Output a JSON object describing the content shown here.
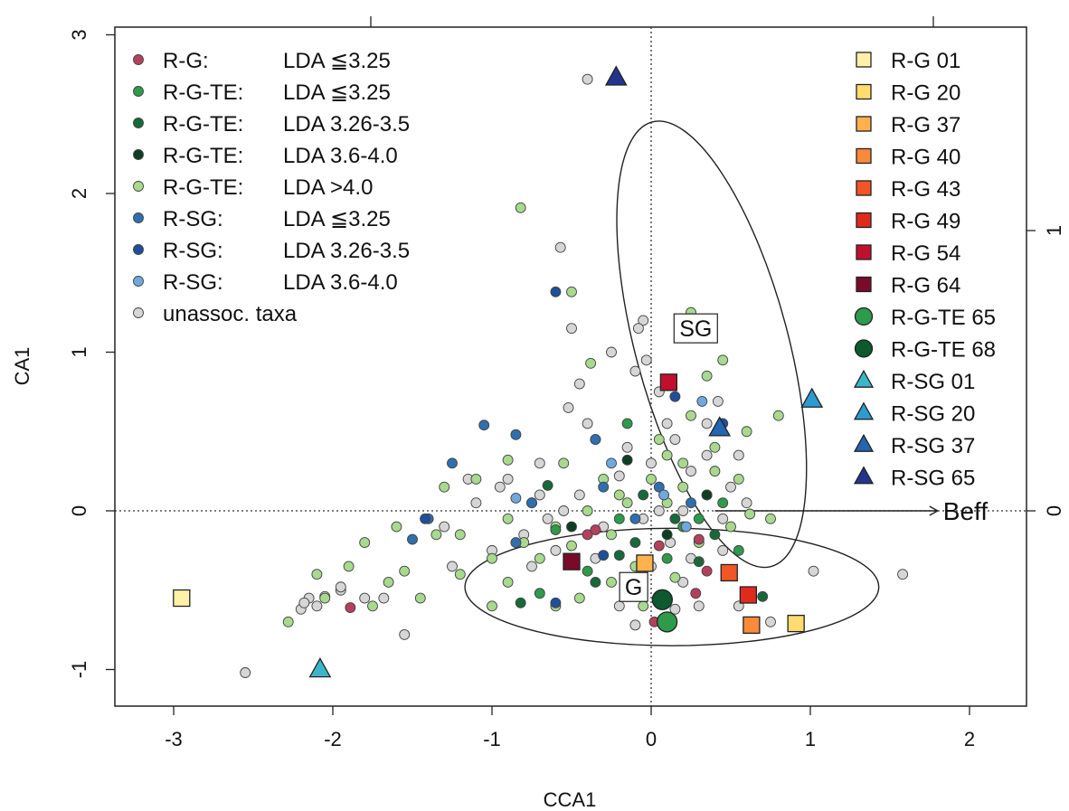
{
  "chart_data": {
    "type": "scatter",
    "title": "",
    "xlabel": "CCA1",
    "ylabel": "CA1",
    "xlim": [
      -3.4,
      2.35
    ],
    "ylim": [
      -1.25,
      3.05
    ],
    "x_ticks": [
      "-3",
      "-2",
      "-1",
      "0",
      "1",
      "2"
    ],
    "y_ticks": [
      "-1",
      "0",
      "1",
      "2",
      "3"
    ],
    "right_axis_ticks": [
      "0",
      "1"
    ],
    "grid": false,
    "reference_lines": "dotted lines at x = 0 and y = 0",
    "legend_left_position": "top-left",
    "legend_right_position": "top-right",
    "legend_left": [
      {
        "group": "R-G:",
        "lda": "LDA ≦3.25",
        "color": "#B5405E",
        "key": "rg_le325"
      },
      {
        "group": "R-G-TE:",
        "lda": "LDA ≦3.25",
        "color": "#2E9A4C",
        "key": "rgte_le325"
      },
      {
        "group": "R-G-TE:",
        "lda": "LDA 3.26-3.5",
        "color": "#17693A",
        "key": "rgte_326"
      },
      {
        "group": "R-G-TE:",
        "lda": "LDA 3.6-4.0",
        "color": "#0E3D24",
        "key": "rgte_36"
      },
      {
        "group": "R-G-TE:",
        "lda": "LDA >4.0",
        "color": "#A8D98E",
        "key": "rgte_gt4"
      },
      {
        "group": "R-SG:",
        "lda": "LDA ≦3.25",
        "color": "#2F6FAE",
        "key": "rsg_le325"
      },
      {
        "group": "R-SG:",
        "lda": "LDA 3.26-3.5",
        "color": "#1F4E9A",
        "key": "rsg_326"
      },
      {
        "group": "R-SG:",
        "lda": "LDA 3.6-4.0",
        "color": "#6FA8DC",
        "key": "rsg_36"
      },
      {
        "group": "unassoc. taxa",
        "lda": "",
        "color": "#D6D6D6",
        "key": "unassoc"
      }
    ],
    "legend_right": [
      {
        "label": "R-G 01",
        "shape": "square",
        "color": "#FFF2A8"
      },
      {
        "label": "R-G 20",
        "shape": "square",
        "color": "#FFDC6E"
      },
      {
        "label": "R-G 37",
        "shape": "square",
        "color": "#FDB24E"
      },
      {
        "label": "R-G 40",
        "shape": "square",
        "color": "#F98A3A"
      },
      {
        "label": "R-G 43",
        "shape": "square",
        "color": "#F25526"
      },
      {
        "label": "R-G 49",
        "shape": "square",
        "color": "#E02A1E"
      },
      {
        "label": "R-G 54",
        "shape": "square",
        "color": "#C0102E"
      },
      {
        "label": "R-G 64",
        "shape": "square",
        "color": "#7A0A2A"
      },
      {
        "label": "R-G-TE 65",
        "shape": "circle",
        "color": "#2E9A4C"
      },
      {
        "label": "R-G-TE 68",
        "shape": "circle",
        "color": "#0E5A2E"
      },
      {
        "label": "R-SG 01",
        "shape": "triangle",
        "color": "#3DB5C8"
      },
      {
        "label": "R-SG 20",
        "shape": "triangle",
        "color": "#2C9BD0"
      },
      {
        "label": "R-SG 37",
        "shape": "triangle",
        "color": "#2466B0"
      },
      {
        "label": "R-SG 65",
        "shape": "triangle",
        "color": "#23348F"
      }
    ],
    "group_labels": [
      {
        "text": "SG",
        "x": 0.28,
        "y": 1.15
      },
      {
        "text": "G",
        "x": -0.11,
        "y": -0.48
      }
    ],
    "ellipses": [
      {
        "name": "SG",
        "cx": 0.38,
        "cy": 1.05,
        "rx": 0.48,
        "ry": 1.45,
        "angle": 15
      },
      {
        "name": "G",
        "cx": 0.13,
        "cy": -0.48,
        "rx": 1.3,
        "ry": 0.37,
        "angle": 0
      }
    ],
    "arrow": {
      "label": "Beff",
      "x0": 0.4,
      "y0": 0,
      "x1": 1.8,
      "y1": 0
    },
    "samples": [
      {
        "label": "R-G 01",
        "shape": "square",
        "color": "#FFF2A8",
        "x": -2.95,
        "y": -0.55
      },
      {
        "label": "R-G 20",
        "shape": "square",
        "color": "#FFDC6E",
        "x": 0.91,
        "y": -0.71
      },
      {
        "label": "R-G 37",
        "shape": "square",
        "color": "#FDB24E",
        "x": -0.04,
        "y": -0.33
      },
      {
        "label": "R-G 40",
        "shape": "square",
        "color": "#F98A3A",
        "x": 0.63,
        "y": -0.72
      },
      {
        "label": "R-G 43",
        "shape": "square",
        "color": "#F25526",
        "x": 0.49,
        "y": -0.39
      },
      {
        "label": "R-G 49",
        "shape": "square",
        "color": "#E02A1E",
        "x": 0.61,
        "y": -0.53
      },
      {
        "label": "R-G 54",
        "shape": "square",
        "color": "#C0102E",
        "x": 0.11,
        "y": 0.81
      },
      {
        "label": "R-G 64",
        "shape": "square",
        "color": "#7A0A2A",
        "x": -0.5,
        "y": -0.32
      },
      {
        "label": "R-G-TE 65",
        "shape": "circle",
        "color": "#2E9A4C",
        "x": 0.1,
        "y": -0.7
      },
      {
        "label": "R-G-TE 68",
        "shape": "circle",
        "color": "#0E5A2E",
        "x": 0.07,
        "y": -0.56
      },
      {
        "label": "R-SG 01",
        "shape": "triangle",
        "color": "#3DB5C8",
        "x": -2.08,
        "y": -1.0
      },
      {
        "label": "R-SG 20",
        "shape": "triangle",
        "color": "#2C9BD0",
        "x": 1.01,
        "y": 0.7
      },
      {
        "label": "R-SG 37",
        "shape": "triangle",
        "color": "#2466B0",
        "x": 0.43,
        "y": 0.52
      },
      {
        "label": "R-SG 65",
        "shape": "triangle",
        "color": "#23348F",
        "x": -0.22,
        "y": 2.73
      }
    ],
    "series": [
      {
        "key": "rg_le325",
        "points": [
          [
            -1.89,
            -0.61
          ],
          [
            -0.4,
            -0.15
          ],
          [
            0.05,
            -0.22
          ],
          [
            -0.35,
            -0.12
          ],
          [
            0.28,
            -0.52
          ],
          [
            0.3,
            -0.18
          ],
          [
            0.02,
            -0.7
          ],
          [
            0.35,
            -0.38
          ]
        ]
      },
      {
        "key": "rgte_le325",
        "points": [
          [
            -0.7,
            -0.52
          ],
          [
            -0.2,
            -0.05
          ],
          [
            0.1,
            -0.3
          ],
          [
            -0.15,
            0.55
          ],
          [
            0.3,
            -0.05
          ],
          [
            -0.4,
            -0.38
          ],
          [
            0.45,
            0.05
          ],
          [
            0.2,
            -0.1
          ],
          [
            -0.6,
            -0.12
          ],
          [
            0.55,
            -0.25
          ]
        ]
      },
      {
        "key": "rgte_326",
        "points": [
          [
            -0.65,
            0.16
          ],
          [
            -0.35,
            -0.45
          ],
          [
            -0.1,
            -0.2
          ],
          [
            0.15,
            -0.05
          ],
          [
            -0.82,
            -0.58
          ],
          [
            0.3,
            -0.32
          ],
          [
            0.7,
            -0.54
          ],
          [
            -0.05,
            0.1
          ],
          [
            0.4,
            -0.15
          ],
          [
            -0.2,
            -0.28
          ]
        ]
      },
      {
        "key": "rgte_36",
        "points": [
          [
            -0.5,
            -0.1
          ],
          [
            -0.15,
            0.32
          ],
          [
            0.1,
            -0.15
          ],
          [
            0.35,
            0.1
          ]
        ]
      },
      {
        "key": "rgte_gt4",
        "points": [
          [
            -0.82,
            1.91
          ],
          [
            -0.5,
            1.38
          ],
          [
            -0.38,
            0.93
          ],
          [
            -0.9,
            0.32
          ],
          [
            -1.1,
            0.2
          ],
          [
            -1.3,
            0.15
          ],
          [
            -1.6,
            -0.1
          ],
          [
            -1.8,
            -0.2
          ],
          [
            -2.05,
            -0.55
          ],
          [
            -2.28,
            -0.7
          ],
          [
            -1.45,
            -0.55
          ],
          [
            -1.65,
            -0.45
          ],
          [
            -1.2,
            -0.4
          ],
          [
            -1.0,
            -0.3
          ],
          [
            -0.8,
            -0.2
          ],
          [
            -0.6,
            -0.1
          ],
          [
            -0.4,
            0.0
          ],
          [
            -0.2,
            0.1
          ],
          [
            0.0,
            0.2
          ],
          [
            0.2,
            0.3
          ],
          [
            0.4,
            0.4
          ],
          [
            0.6,
            0.5
          ],
          [
            0.8,
            0.6
          ],
          [
            0.25,
            1.25
          ],
          [
            0.35,
            0.85
          ],
          [
            0.45,
            0.95
          ],
          [
            0.62,
            -0.02
          ],
          [
            -0.25,
            -0.45
          ],
          [
            -0.05,
            -0.6
          ],
          [
            0.15,
            -0.42
          ],
          [
            -0.7,
            -0.3
          ],
          [
            -0.9,
            -0.45
          ],
          [
            -1.35,
            -0.15
          ],
          [
            -0.55,
            0.3
          ],
          [
            -0.3,
            0.2
          ],
          [
            0.05,
            0.45
          ],
          [
            0.25,
            0.6
          ],
          [
            -0.1,
            -0.35
          ],
          [
            0.5,
            -0.1
          ],
          [
            -0.45,
            -0.55
          ],
          [
            -1.55,
            -0.38
          ],
          [
            -1.75,
            -0.6
          ],
          [
            -1.9,
            -0.35
          ],
          [
            -2.1,
            -0.4
          ],
          [
            -1.0,
            -0.6
          ],
          [
            -0.6,
            -0.6
          ],
          [
            0.2,
            0.15
          ],
          [
            0.4,
            0.25
          ],
          [
            -0.15,
            0.05
          ],
          [
            0.1,
            0.35
          ],
          [
            -0.35,
            0.45
          ],
          [
            -1.2,
            -0.15
          ],
          [
            -0.9,
            -0.05
          ],
          [
            -0.75,
            0.05
          ],
          [
            0.3,
            -0.2
          ],
          [
            0.1,
            0.05
          ],
          [
            -0.25,
            -0.15
          ],
          [
            -0.5,
            -0.22
          ],
          [
            0.55,
            0.2
          ],
          [
            0.75,
            -0.05
          ]
        ]
      },
      {
        "key": "rsg_le325",
        "points": [
          [
            -1.25,
            0.3
          ],
          [
            -0.85,
            0.48
          ],
          [
            -1.05,
            0.54
          ],
          [
            -0.35,
            0.45
          ],
          [
            -0.85,
            -0.2
          ],
          [
            -1.5,
            -0.18
          ],
          [
            -0.75,
            0.05
          ],
          [
            0.05,
            0.15
          ],
          [
            0.25,
            0.05
          ],
          [
            -0.1,
            -0.05
          ],
          [
            -1.4,
            -0.05
          ],
          [
            -0.3,
            0.15
          ]
        ]
      },
      {
        "key": "rsg_326",
        "points": [
          [
            -0.6,
            1.38
          ],
          [
            -0.6,
            -0.58
          ],
          [
            0.15,
            0.72
          ],
          [
            -0.3,
            -0.28
          ],
          [
            -1.42,
            -0.05
          ],
          [
            0.45,
            0.55
          ]
        ]
      },
      {
        "key": "rsg_36",
        "points": [
          [
            0.32,
            0.69
          ],
          [
            -0.85,
            0.08
          ],
          [
            0.08,
            0.1
          ],
          [
            0.22,
            -0.1
          ],
          [
            -0.25,
            0.3
          ]
        ]
      },
      {
        "key": "unassoc",
        "points": [
          [
            -0.4,
            2.72
          ],
          [
            -0.57,
            1.66
          ],
          [
            -0.5,
            1.15
          ],
          [
            -0.45,
            0.8
          ],
          [
            -0.52,
            0.65
          ],
          [
            -0.05,
            1.2
          ],
          [
            -0.08,
            1.15
          ],
          [
            -0.25,
            1.0
          ],
          [
            -0.03,
            0.95
          ],
          [
            -0.1,
            0.88
          ],
          [
            -2.55,
            -1.02
          ],
          [
            -2.2,
            -0.62
          ],
          [
            -2.15,
            -0.55
          ],
          [
            -2.05,
            -0.54
          ],
          [
            -2.18,
            -0.58
          ],
          [
            -2.1,
            -0.6
          ],
          [
            -1.95,
            -0.5
          ],
          [
            -1.8,
            -0.55
          ],
          [
            -1.68,
            -0.55
          ],
          [
            -1.55,
            -0.78
          ],
          [
            -1.95,
            -0.48
          ],
          [
            -1.15,
            0.2
          ],
          [
            -0.95,
            0.15
          ],
          [
            -0.7,
            0.1
          ],
          [
            -1.3,
            -0.1
          ],
          [
            1.58,
            -0.4
          ],
          [
            1.02,
            -0.38
          ],
          [
            0.75,
            -0.7
          ],
          [
            0.55,
            0.35
          ],
          [
            0.42,
            0.69
          ],
          [
            -0.1,
            -0.72
          ],
          [
            0.05,
            0.0
          ],
          [
            0.12,
            -0.2
          ],
          [
            0.25,
            0.25
          ],
          [
            0.35,
            0.1
          ],
          [
            0.45,
            -0.05
          ],
          [
            0.15,
            0.45
          ],
          [
            -0.2,
            0.22
          ],
          [
            -0.45,
            0.1
          ],
          [
            -0.65,
            -0.05
          ],
          [
            -0.8,
            -0.15
          ],
          [
            -1.0,
            -0.25
          ],
          [
            -1.25,
            -0.35
          ],
          [
            0.3,
            -0.6
          ],
          [
            0.55,
            -0.6
          ],
          [
            -0.55,
            0.0
          ],
          [
            0.0,
            -0.35
          ],
          [
            0.2,
            -0.45
          ],
          [
            -0.3,
            -0.1
          ],
          [
            0.1,
            0.55
          ],
          [
            0.35,
            0.35
          ],
          [
            -0.15,
            0.4
          ],
          [
            0.05,
            0.75
          ],
          [
            0.5,
            0.15
          ],
          [
            -0.05,
            -0.05
          ],
          [
            -0.35,
            -0.3
          ],
          [
            0.25,
            -0.3
          ],
          [
            0.45,
            -0.25
          ],
          [
            0.6,
            0.05
          ],
          [
            -0.7,
            0.3
          ],
          [
            -0.9,
            0.2
          ],
          [
            -0.6,
            -0.25
          ],
          [
            -0.2,
            -0.6
          ],
          [
            0.15,
            -0.62
          ],
          [
            -1.1,
            0.05
          ],
          [
            -0.75,
            -0.35
          ],
          [
            0.35,
            0.55
          ],
          [
            -0.4,
            0.55
          ],
          [
            0.0,
            0.3
          ],
          [
            0.2,
            0.0
          ]
        ]
      }
    ]
  }
}
